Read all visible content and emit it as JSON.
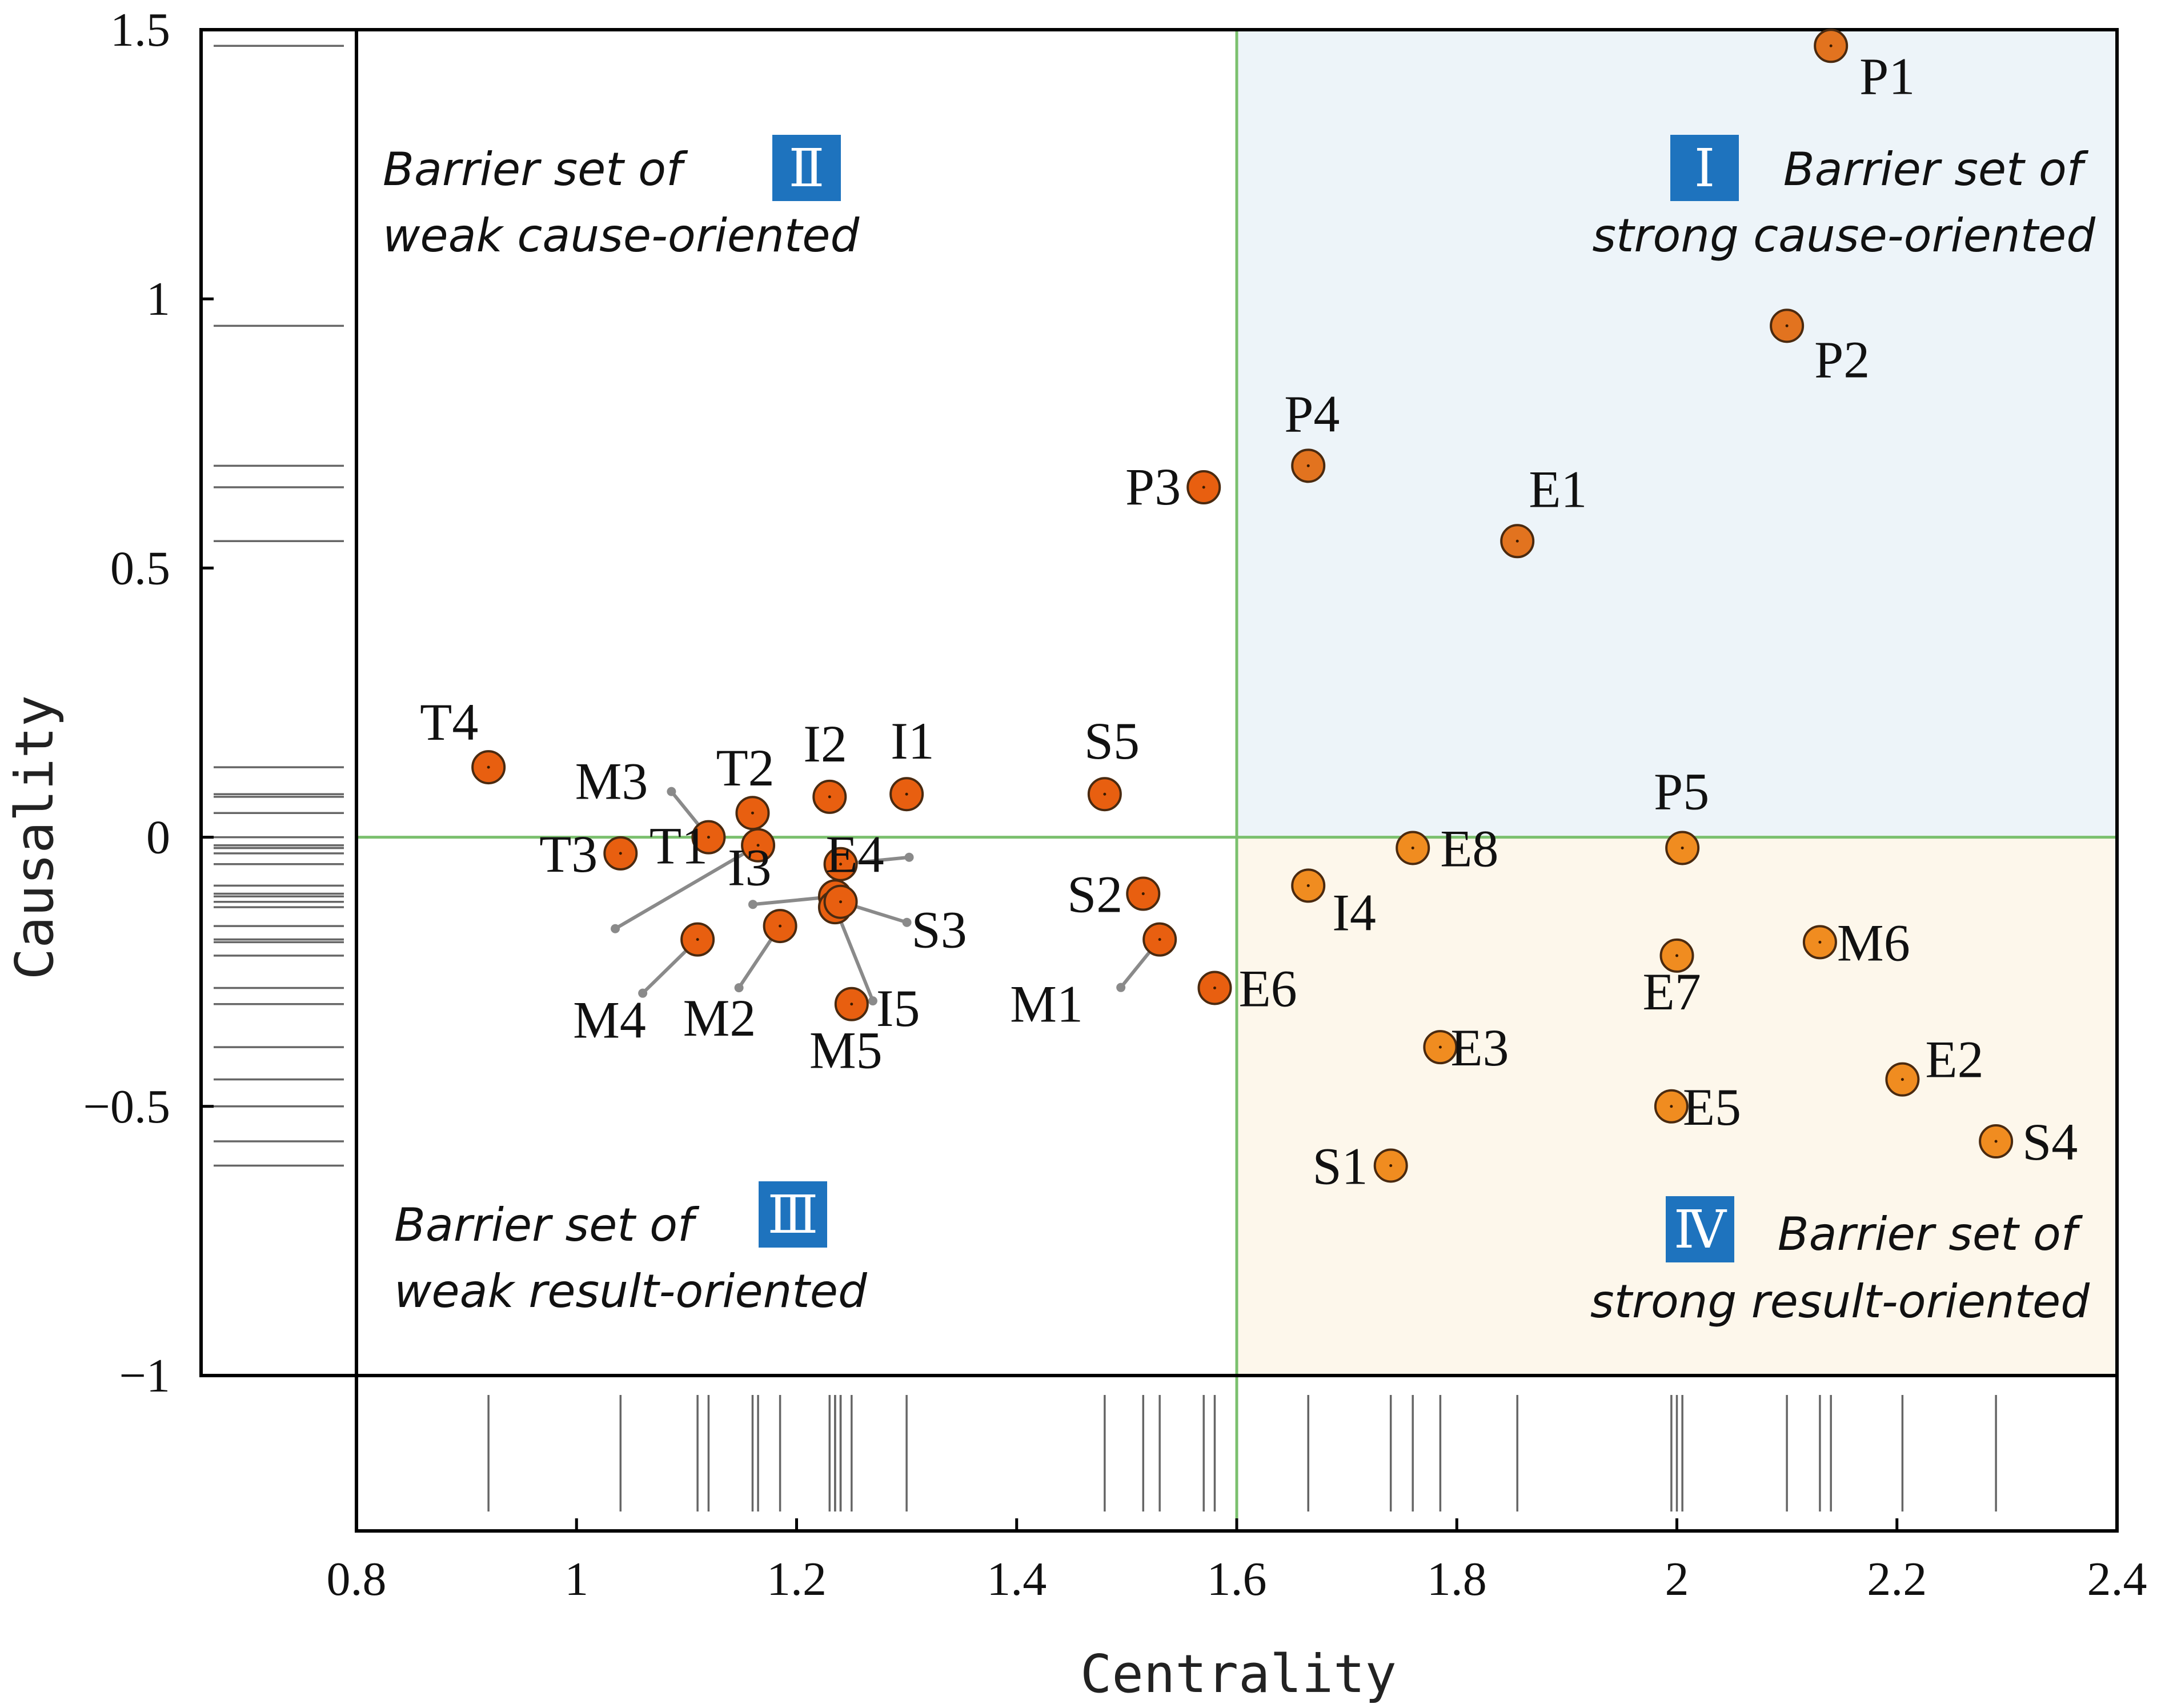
{
  "chart_data": {
    "type": "scatter",
    "title": "",
    "xlabel": "Centrality",
    "ylabel": "Causality",
    "xlim": [
      0.8,
      2.4
    ],
    "ylim": [
      -1,
      1.5
    ],
    "xticks": [
      "0.8",
      "1",
      "1.2",
      "1.4",
      "1.6",
      "1.8",
      "2",
      "2.2",
      "2.4"
    ],
    "yticks": [
      "−1",
      "−0.5",
      "0",
      "0.5",
      "1",
      "1.5"
    ],
    "threshold_x": 1.6,
    "threshold_y": 0,
    "colors": {
      "point_cause": "#E2731F",
      "point_result": "#F08C20",
      "point_weak": "#E85F10",
      "quadrant_I_fill": "#EDF4F9",
      "quadrant_IV_fill": "#FDF7EB",
      "threshold_line": "#7BC06E",
      "badge": "#1E73BE",
      "rug": "#666666"
    },
    "quadrants": [
      {
        "numeral": "Ⅰ",
        "line1": "Barrier set of",
        "line2": "strong cause-oriented"
      },
      {
        "numeral": "Ⅱ",
        "line1": "Barrier set of",
        "line2": "weak cause-oriented"
      },
      {
        "numeral": "Ⅲ",
        "line1": "Barrier set of",
        "line2": "weak result-oriented"
      },
      {
        "numeral": "Ⅳ",
        "line1": "Barrier set of",
        "line2": "strong result-oriented"
      }
    ],
    "points": [
      {
        "label": "P1",
        "x": 2.14,
        "y": 1.47
      },
      {
        "label": "P2",
        "x": 2.1,
        "y": 0.95
      },
      {
        "label": "P3",
        "x": 1.57,
        "y": 0.65
      },
      {
        "label": "P4",
        "x": 1.665,
        "y": 0.69
      },
      {
        "label": "P5",
        "x": 2.005,
        "y": -0.02
      },
      {
        "label": "E1",
        "x": 1.855,
        "y": 0.55
      },
      {
        "label": "E2",
        "x": 2.205,
        "y": -0.45
      },
      {
        "label": "E3",
        "x": 1.785,
        "y": -0.39
      },
      {
        "label": "E4",
        "x": 1.24,
        "y": -0.05
      },
      {
        "label": "E5",
        "x": 1.995,
        "y": -0.5
      },
      {
        "label": "E6",
        "x": 1.58,
        "y": -0.28
      },
      {
        "label": "E7",
        "x": 2.0,
        "y": -0.22
      },
      {
        "label": "E8",
        "x": 1.76,
        "y": -0.02
      },
      {
        "label": "T1",
        "x": 1.165,
        "y": -0.015
      },
      {
        "label": "T2",
        "x": 1.16,
        "y": 0.045
      },
      {
        "label": "T3",
        "x": 1.04,
        "y": -0.03
      },
      {
        "label": "T4",
        "x": 0.92,
        "y": 0.13
      },
      {
        "label": "I1",
        "x": 1.3,
        "y": 0.08
      },
      {
        "label": "I2",
        "x": 1.23,
        "y": 0.075
      },
      {
        "label": "I3",
        "x": 1.235,
        "y": -0.11
      },
      {
        "label": "I4",
        "x": 1.665,
        "y": -0.09
      },
      {
        "label": "I5",
        "x": 1.235,
        "y": -0.13
      },
      {
        "label": "M1",
        "x": 1.53,
        "y": -0.19
      },
      {
        "label": "M2",
        "x": 1.185,
        "y": -0.165
      },
      {
        "label": "M3",
        "x": 1.12,
        "y": 0.0
      },
      {
        "label": "M4",
        "x": 1.11,
        "y": -0.19
      },
      {
        "label": "M5",
        "x": 1.25,
        "y": -0.31
      },
      {
        "label": "M6",
        "x": 2.13,
        "y": -0.195
      },
      {
        "label": "S1",
        "x": 1.74,
        "y": -0.61
      },
      {
        "label": "S2",
        "x": 1.515,
        "y": -0.105
      },
      {
        "label": "S3",
        "x": 1.24,
        "y": -0.12
      },
      {
        "label": "S4",
        "x": 2.29,
        "y": -0.565
      },
      {
        "label": "S5",
        "x": 1.48,
        "y": 0.08
      }
    ]
  }
}
